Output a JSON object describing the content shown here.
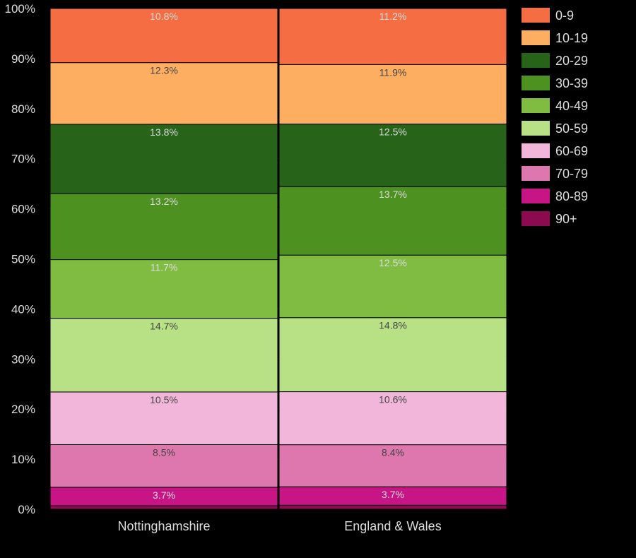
{
  "chart_data": {
    "type": "bar",
    "stacked": true,
    "normalized": true,
    "categories": [
      "Nottinghamshire",
      "England & Wales"
    ],
    "series": [
      {
        "name": "90+",
        "color": "#8b0a50",
        "values": [
          0.7,
          0.8
        ],
        "labels": [
          "",
          ""
        ]
      },
      {
        "name": "80-89",
        "color": "#c71585",
        "values": [
          3.7,
          3.7
        ],
        "labels": [
          "3.7%",
          "3.7%"
        ]
      },
      {
        "name": "70-79",
        "color": "#de77ae",
        "values": [
          8.5,
          8.4
        ],
        "labels": [
          "8.5%",
          "8.4%"
        ]
      },
      {
        "name": "60-69",
        "color": "#f1b6da",
        "values": [
          10.5,
          10.6
        ],
        "labels": [
          "10.5%",
          "10.6%"
        ]
      },
      {
        "name": "50-59",
        "color": "#b8e186",
        "values": [
          14.7,
          14.8
        ],
        "labels": [
          "14.7%",
          "14.8%"
        ]
      },
      {
        "name": "40-49",
        "color": "#7fbc41",
        "values": [
          11.7,
          12.5
        ],
        "labels": [
          "11.7%",
          "12.5%"
        ]
      },
      {
        "name": "30-39",
        "color": "#4d9221",
        "values": [
          13.2,
          13.7
        ],
        "labels": [
          "13.2%",
          "13.7%"
        ]
      },
      {
        "name": "20-29",
        "color": "#276419",
        "values": [
          13.8,
          12.5
        ],
        "labels": [
          "13.8%",
          "12.5%"
        ]
      },
      {
        "name": "10-19",
        "color": "#fdae61",
        "values": [
          12.3,
          11.9
        ],
        "labels": [
          "12.3%",
          "11.9%"
        ]
      },
      {
        "name": "0-9",
        "color": "#f46d43",
        "values": [
          10.8,
          11.2
        ],
        "labels": [
          "10.8%",
          "11.2%"
        ]
      }
    ],
    "yticks": [
      "0%",
      "10%",
      "20%",
      "30%",
      "40%",
      "50%",
      "60%",
      "70%",
      "80%",
      "90%",
      "100%"
    ],
    "ylim": [
      0,
      100
    ],
    "legend_order": [
      "0-9",
      "10-19",
      "20-29",
      "30-39",
      "40-49",
      "50-59",
      "60-69",
      "70-79",
      "80-89",
      "90+"
    ],
    "legend_position": "right",
    "label_colors": {
      "dark": "#dddddd",
      "light": "#444444"
    },
    "gridlines": true
  }
}
